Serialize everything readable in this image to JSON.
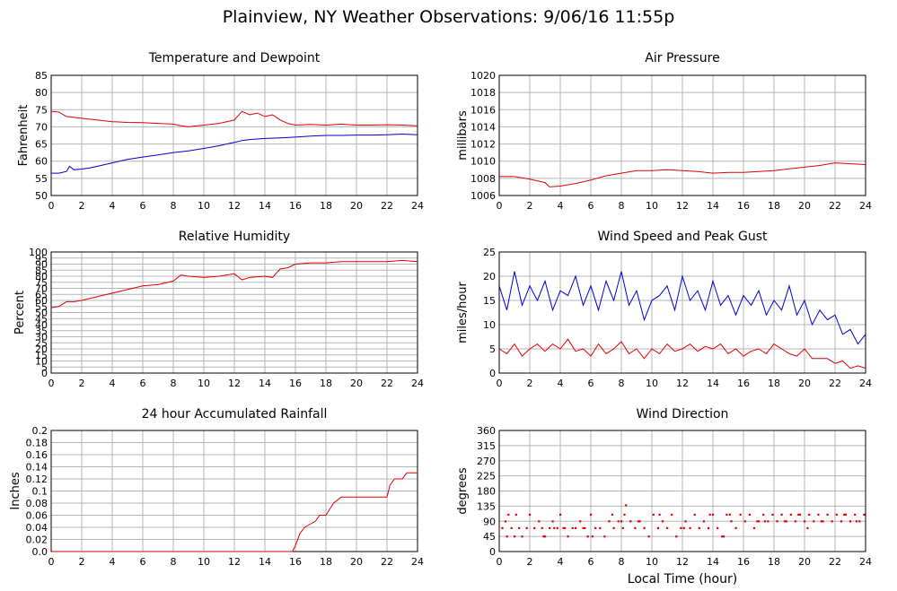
{
  "page": {
    "title": "Plainview, NY Weather Observations: 9/06/16 11:55p",
    "xlabel": "Local Time (hour)"
  },
  "colors": {
    "series_red": "#e00000",
    "series_blue": "#0000d0",
    "grid": "#b4b4b4",
    "frame": "#000000"
  },
  "chart_data": [
    {
      "type": "line",
      "title": "Temperature and Dewpoint",
      "ylabel": "Fahrenheit",
      "xlim": [
        0,
        24
      ],
      "ylim": [
        50,
        85
      ],
      "xticks": [
        0,
        2,
        4,
        6,
        8,
        10,
        12,
        14,
        16,
        18,
        20,
        22,
        24
      ],
      "yticks": [
        50,
        55,
        60,
        65,
        70,
        75,
        80,
        85
      ],
      "series": [
        {
          "color": "#e00000",
          "x": [
            0,
            0.5,
            1,
            2,
            3,
            4,
            5,
            6,
            7,
            8,
            8.5,
            9,
            10,
            11,
            11.5,
            12,
            12.5,
            13,
            13.5,
            14,
            14.5,
            15,
            15.5,
            16,
            17,
            18,
            19,
            20,
            21,
            22,
            23,
            24
          ],
          "y": [
            74.5,
            74.3,
            73,
            72.5,
            72,
            71.5,
            71.3,
            71.2,
            71,
            70.8,
            70.3,
            70,
            70.5,
            71,
            71.5,
            72,
            74.5,
            73.5,
            74,
            73,
            73.5,
            72,
            71,
            70.5,
            70.7,
            70.5,
            70.8,
            70.5,
            70.5,
            70.6,
            70.5,
            70.3
          ]
        },
        {
          "color": "#0000d0",
          "x": [
            0,
            0.5,
            1,
            1.2,
            1.5,
            2,
            2.5,
            3,
            4,
            5,
            6,
            7,
            8,
            9,
            10,
            11,
            12,
            12.5,
            13,
            14,
            15,
            16,
            17,
            18,
            19,
            20,
            21,
            22,
            23,
            24
          ],
          "y": [
            56.5,
            56.5,
            57,
            58.5,
            57.5,
            57.7,
            58,
            58.5,
            59.5,
            60.5,
            61.2,
            61.8,
            62.5,
            63,
            63.7,
            64.5,
            65.5,
            66,
            66.3,
            66.6,
            66.8,
            67,
            67.3,
            67.5,
            67.5,
            67.6,
            67.6,
            67.7,
            67.9,
            67.7
          ]
        }
      ]
    },
    {
      "type": "line",
      "title": "Air Pressure",
      "ylabel": "millibars",
      "xlim": [
        0,
        24
      ],
      "ylim": [
        1006,
        1020
      ],
      "xticks": [
        0,
        2,
        4,
        6,
        8,
        10,
        12,
        14,
        16,
        18,
        20,
        22,
        24
      ],
      "yticks": [
        1006,
        1008,
        1010,
        1012,
        1014,
        1016,
        1018,
        1020
      ],
      "series": [
        {
          "color": "#e00000",
          "x": [
            0,
            1,
            2,
            3,
            3.3,
            4,
            5,
            6,
            7,
            8,
            9,
            10,
            11,
            12,
            13,
            14,
            15,
            16,
            17,
            18,
            19,
            20,
            21,
            22,
            23,
            24
          ],
          "y": [
            1008.2,
            1008.2,
            1007.9,
            1007.5,
            1007,
            1007.1,
            1007.4,
            1007.8,
            1008.3,
            1008.6,
            1008.9,
            1008.9,
            1009,
            1008.9,
            1008.8,
            1008.6,
            1008.7,
            1008.7,
            1008.8,
            1008.9,
            1009.1,
            1009.3,
            1009.5,
            1009.8,
            1009.7,
            1009.6
          ]
        }
      ]
    },
    {
      "type": "line",
      "title": "Relative Humidity",
      "ylabel": "Percent",
      "xlim": [
        0,
        24
      ],
      "ylim": [
        0,
        100
      ],
      "xticks": [
        0,
        2,
        4,
        6,
        8,
        10,
        12,
        14,
        16,
        18,
        20,
        22,
        24
      ],
      "yticks": [
        0,
        5,
        10,
        15,
        20,
        25,
        30,
        35,
        40,
        45,
        50,
        55,
        60,
        65,
        70,
        75,
        80,
        85,
        90,
        95,
        100
      ],
      "series": [
        {
          "color": "#e00000",
          "x": [
            0,
            0.5,
            1,
            1.5,
            2,
            3,
            4,
            5,
            6,
            7,
            8,
            8.5,
            9,
            10,
            11,
            12,
            12.5,
            13,
            14,
            14.5,
            15,
            15.5,
            16,
            17,
            18,
            19,
            20,
            21,
            22,
            23,
            24
          ],
          "y": [
            54,
            55,
            59,
            59,
            60,
            63,
            66,
            69,
            72,
            73,
            76,
            81,
            80,
            79,
            80,
            82,
            77,
            79,
            80,
            79,
            86,
            87,
            90,
            91,
            91,
            92,
            92,
            92,
            92,
            93,
            92
          ]
        }
      ]
    },
    {
      "type": "line",
      "title": "Wind Speed and Peak Gust",
      "ylabel": "miles/hour",
      "xlim": [
        0,
        24
      ],
      "ylim": [
        0,
        25
      ],
      "xticks": [
        0,
        2,
        4,
        6,
        8,
        10,
        12,
        14,
        16,
        18,
        20,
        22,
        24
      ],
      "yticks": [
        0,
        5,
        10,
        15,
        20,
        25
      ],
      "series": [
        {
          "color": "#0000d0",
          "x": [
            0,
            0.5,
            1,
            1.5,
            2,
            2.5,
            3,
            3.5,
            4,
            4.5,
            5,
            5.5,
            6,
            6.5,
            7,
            7.5,
            8,
            8.5,
            9,
            9.5,
            10,
            10.5,
            11,
            11.5,
            12,
            12.5,
            13,
            13.5,
            14,
            14.5,
            15,
            15.5,
            16,
            16.5,
            17,
            17.5,
            18,
            18.5,
            19,
            19.5,
            20,
            20.5,
            21,
            21.5,
            22,
            22.5,
            23,
            23.5,
            24
          ],
          "y": [
            18,
            13,
            21,
            14,
            18,
            15,
            19,
            13,
            17,
            16,
            20,
            14,
            18,
            13,
            19,
            15,
            21,
            14,
            17,
            11,
            15,
            16,
            18,
            13,
            20,
            15,
            17,
            13,
            19,
            14,
            16,
            12,
            16,
            14,
            17,
            12,
            15,
            13,
            18,
            12,
            15,
            10,
            13,
            11,
            12,
            8,
            9,
            6,
            8
          ]
        },
        {
          "color": "#e00000",
          "x": [
            0,
            0.5,
            1,
            1.5,
            2,
            2.5,
            3,
            3.5,
            4,
            4.5,
            5,
            5.5,
            6,
            6.5,
            7,
            7.5,
            8,
            8.5,
            9,
            9.5,
            10,
            10.5,
            11,
            11.5,
            12,
            12.5,
            13,
            13.5,
            14,
            14.5,
            15,
            15.5,
            16,
            16.5,
            17,
            17.5,
            18,
            18.5,
            19,
            19.5,
            20,
            20.5,
            21,
            21.5,
            22,
            22.5,
            23,
            23.5,
            24
          ],
          "y": [
            5,
            4,
            6,
            3.5,
            5,
            6,
            4.5,
            6,
            5,
            7,
            4.5,
            5,
            3.5,
            6,
            4,
            5,
            6.5,
            4,
            5,
            3,
            5,
            4,
            6,
            4.5,
            5,
            6,
            4.5,
            5.5,
            5,
            6,
            4,
            5,
            3.5,
            4.5,
            5,
            4,
            6,
            5,
            4,
            3.5,
            5,
            3,
            3,
            3,
            2,
            2.5,
            1,
            1.5,
            1
          ]
        }
      ]
    },
    {
      "type": "line",
      "title": "24 hour Accumulated Rainfall",
      "ylabel": "Inches",
      "xlim": [
        0,
        24
      ],
      "ylim": [
        0,
        0.2
      ],
      "xticks": [
        0,
        2,
        4,
        6,
        8,
        10,
        12,
        14,
        16,
        18,
        20,
        22,
        24
      ],
      "yticks": [
        0,
        0.02,
        0.04,
        0.06,
        0.08,
        0.1,
        0.12,
        0.14,
        0.16,
        0.18,
        0.2
      ],
      "series": [
        {
          "color": "#e00000",
          "x": [
            0,
            0.05,
            15.8,
            16,
            16.3,
            16.6,
            17.3,
            17.6,
            18,
            18.5,
            19,
            20.3,
            22,
            22.2,
            22.5,
            23,
            23.3,
            24
          ],
          "y": [
            0.003,
            0,
            0,
            0.01,
            0.03,
            0.04,
            0.05,
            0.06,
            0.06,
            0.08,
            0.09,
            0.09,
            0.09,
            0.11,
            0.12,
            0.12,
            0.13,
            0.13
          ]
        }
      ]
    },
    {
      "type": "scatter",
      "title": "Wind Direction",
      "ylabel": "degrees",
      "xlim": [
        0,
        24
      ],
      "ylim": [
        0,
        360
      ],
      "xticks": [
        0,
        2,
        4,
        6,
        8,
        10,
        12,
        14,
        16,
        18,
        20,
        22,
        24
      ],
      "yticks": [
        0,
        45,
        90,
        135,
        180,
        225,
        270,
        315,
        360
      ],
      "series": [
        {
          "color": "#e00000",
          "x": [
            0.2,
            0.4,
            0.6,
            0.8,
            1.0,
            1.3,
            1.5,
            1.8,
            2.0,
            2.3,
            2.6,
            2.8,
            3.0,
            3.3,
            3.5,
            3.8,
            4.0,
            4.3,
            4.5,
            4.8,
            5.0,
            5.3,
            5.6,
            5.8,
            6.0,
            6.3,
            6.6,
            6.9,
            7.2,
            7.5,
            7.8,
            8.1,
            8.3,
            8.6,
            8.9,
            9.2,
            9.5,
            9.8,
            10.1,
            10.4,
            10.7,
            11.0,
            11.3,
            11.6,
            11.9,
            12.2,
            12.5,
            12.8,
            13.1,
            13.4,
            13.7,
            14.0,
            14.3,
            14.6,
            14.9,
            15.2,
            15.5,
            15.8,
            16.1,
            16.4,
            16.7,
            17.0,
            17.3,
            17.6,
            17.9,
            18.2,
            18.5,
            18.8,
            19.1,
            19.4,
            19.7,
            20.0,
            20.3,
            20.6,
            20.9,
            21.2,
            21.5,
            21.8,
            22.1,
            22.4,
            22.7,
            23.0,
            23.3,
            23.6,
            23.9,
            0.5,
            2.9,
            4.2,
            5.5,
            6.1,
            7.4,
            8.0,
            8.2,
            10.5,
            12.1,
            13.8,
            15.1,
            16.9,
            18.7,
            19.6,
            21.1,
            22.6,
            23.4,
            1.1,
            3.6,
            9.1,
            14.7,
            17.4,
            20.2
          ],
          "y": [
            70,
            90,
            110,
            70,
            45,
            70,
            45,
            70,
            110,
            70,
            90,
            70,
            45,
            70,
            90,
            70,
            110,
            70,
            45,
            70,
            70,
            90,
            70,
            45,
            110,
            70,
            70,
            45,
            90,
            70,
            90,
            70,
            138,
            90,
            70,
            90,
            70,
            45,
            110,
            70,
            90,
            70,
            110,
            45,
            70,
            90,
            70,
            110,
            70,
            90,
            70,
            110,
            70,
            45,
            110,
            90,
            70,
            110,
            90,
            110,
            70,
            90,
            110,
            90,
            110,
            90,
            110,
            90,
            110,
            90,
            110,
            90,
            110,
            90,
            110,
            90,
            110,
            90,
            110,
            90,
            110,
            90,
            110,
            90,
            110,
            45,
            45,
            70,
            70,
            45,
            110,
            90,
            110,
            110,
            70,
            110,
            110,
            90,
            90,
            110,
            90,
            110,
            90,
            110,
            70,
            90,
            45,
            90,
            70
          ]
        }
      ]
    }
  ]
}
